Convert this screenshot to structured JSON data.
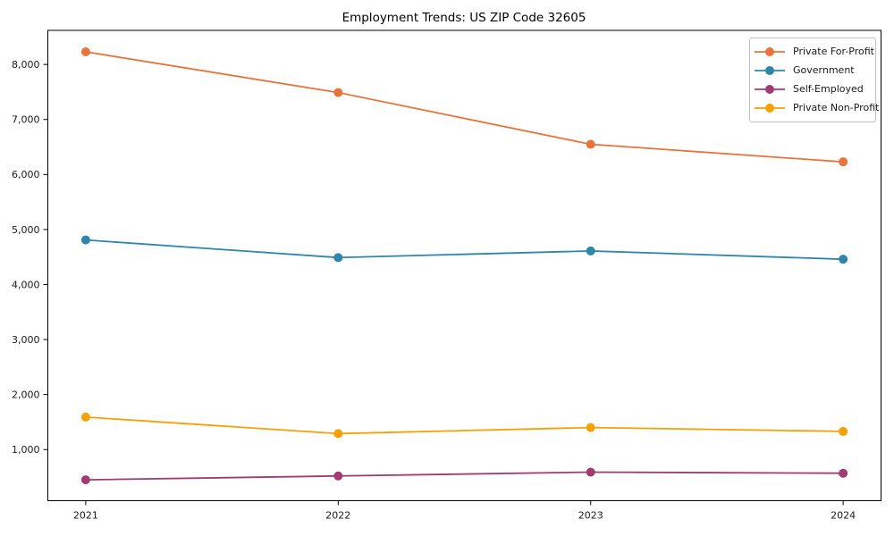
{
  "chart_data": {
    "type": "line",
    "title": "Employment Trends: US ZIP Code 32605",
    "xlabel": "",
    "ylabel": "",
    "x": [
      2021,
      2022,
      2023,
      2024
    ],
    "x_tick_labels": [
      "2021",
      "2022",
      "2023",
      "2024"
    ],
    "series": [
      {
        "name": "Private For-Profit",
        "color": "#E8743B",
        "values": [
          8230,
          7490,
          6550,
          6230
        ]
      },
      {
        "name": "Government",
        "color": "#2E86AB",
        "values": [
          4810,
          4490,
          4610,
          4460
        ]
      },
      {
        "name": "Self-Employed",
        "color": "#A23B72",
        "values": [
          450,
          520,
          590,
          570
        ]
      },
      {
        "name": "Private Non-Profit",
        "color": "#F5A104",
        "values": [
          1590,
          1290,
          1400,
          1330
        ]
      }
    ],
    "yticks": [
      1000,
      2000,
      3000,
      4000,
      5000,
      6000,
      7000,
      8000
    ],
    "ytick_labels": [
      "1,000",
      "2,000",
      "3,000",
      "4,000",
      "5,000",
      "6,000",
      "7,000",
      "8,000"
    ],
    "xlim": [
      2020.85,
      2024.15
    ],
    "ylim": [
      70,
      8620
    ],
    "grid": false,
    "legend_position": "upper right",
    "marker": "circle",
    "axis_color": "#000000",
    "text_color": "#1a1a1a"
  }
}
